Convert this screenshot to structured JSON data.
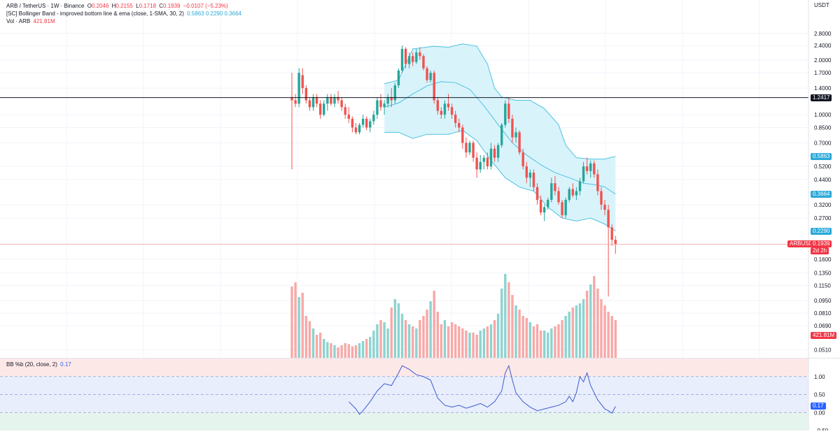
{
  "legend": {
    "line1": {
      "pair": "ARB / TetherUS · 1W · Binance",
      "o_label": "O",
      "o": "0.2046",
      "h_label": "H",
      "h": "0.2155",
      "l_label": "L",
      "l": "0.1718",
      "c_label": "C",
      "c": "0.1939",
      "chg": "−0.0107 (−5.23%)"
    },
    "line2": {
      "name": "[SC] Bollinger Band - improved bottom line & ema (close, 1-SMA, 30, 2)",
      "values": "0.5863  0.2290  0.3664"
    },
    "line3": {
      "name": "Vol · ARB",
      "value": "421.81M"
    },
    "osc": {
      "name": "BB %b (20, close, 2)",
      "value": "0.17"
    }
  },
  "axis": {
    "currency": "USDT",
    "ticks": [
      "2.8000",
      "2.4000",
      "2.0000",
      "1.7000",
      "1.4000",
      "1.0000",
      "0.8500",
      "0.7000",
      "0.5200",
      "0.4400",
      "0.3200",
      "0.2700",
      "0.1600",
      "0.1350",
      "0.1150",
      "0.0950",
      "0.0810",
      "0.0690",
      "0.0510"
    ],
    "osc_ticks": [
      "1.00",
      "0.50",
      "0.00",
      "−0.50"
    ]
  },
  "tags": {
    "hline": "1.2417",
    "bb_upper": "0.5863",
    "bb_basis": "0.3664",
    "bb_lower": "0.2290",
    "symbol": "ARBUSDT",
    "price": "0.1939",
    "countdown": "2d 2h",
    "volume": "421.81M",
    "osc": "0.17"
  },
  "colors": {
    "up": "#26a69a",
    "down": "#ef5350",
    "vol_up": "#8dd3cf",
    "vol_down": "#f7a9a7",
    "band_line": "#4dc3e0",
    "band_fill": "#d9f3fb",
    "osc_line": "#3c5ccf",
    "hline": "#131722"
  },
  "chart_data": {
    "type": "candlestick",
    "scale": "log",
    "ylim": [
      0.046,
      3.0
    ],
    "horizontal_line": 1.2417,
    "current_price": 0.1939,
    "candles": [
      [
        1.25,
        1.7,
        0.5,
        1.2
      ],
      [
        1.2,
        1.3,
        1.1,
        1.15
      ],
      [
        1.15,
        1.8,
        1.1,
        1.7
      ],
      [
        1.65,
        1.8,
        1.3,
        1.4
      ],
      [
        1.4,
        1.45,
        1.15,
        1.2
      ],
      [
        1.2,
        1.25,
        1.05,
        1.1
      ],
      [
        1.1,
        1.3,
        1.05,
        1.25
      ],
      [
        1.25,
        1.3,
        1.1,
        1.15
      ],
      [
        1.15,
        1.2,
        0.95,
        1.0
      ],
      [
        1.0,
        1.2,
        0.98,
        1.15
      ],
      [
        1.15,
        1.3,
        1.05,
        1.25
      ],
      [
        1.25,
        1.3,
        1.12,
        1.15
      ],
      [
        1.15,
        1.3,
        1.1,
        1.25
      ],
      [
        1.25,
        1.35,
        1.15,
        1.2
      ],
      [
        1.2,
        1.25,
        1.05,
        1.1
      ],
      [
        1.1,
        1.15,
        0.95,
        1.0
      ],
      [
        1.0,
        1.1,
        0.9,
        0.95
      ],
      [
        0.95,
        0.98,
        0.8,
        0.85
      ],
      [
        0.85,
        0.9,
        0.78,
        0.8
      ],
      [
        0.8,
        0.9,
        0.78,
        0.88
      ],
      [
        0.88,
        1.0,
        0.85,
        0.95
      ],
      [
        0.95,
        0.98,
        0.82,
        0.85
      ],
      [
        0.85,
        0.95,
        0.8,
        0.92
      ],
      [
        0.92,
        1.05,
        0.88,
        1.0
      ],
      [
        1.0,
        1.25,
        0.95,
        1.2
      ],
      [
        1.2,
        1.3,
        1.05,
        1.1
      ],
      [
        1.1,
        1.2,
        1.0,
        1.15
      ],
      [
        1.15,
        1.3,
        1.1,
        1.25
      ],
      [
        1.25,
        1.4,
        1.1,
        1.2
      ],
      [
        1.2,
        1.5,
        1.15,
        1.45
      ],
      [
        1.45,
        1.8,
        1.4,
        1.75
      ],
      [
        1.75,
        2.4,
        1.7,
        2.3
      ],
      [
        2.3,
        2.35,
        1.8,
        1.9
      ],
      [
        1.9,
        2.2,
        1.8,
        2.1
      ],
      [
        2.1,
        2.2,
        1.85,
        1.95
      ],
      [
        1.95,
        2.3,
        1.9,
        2.2
      ],
      [
        2.2,
        2.35,
        2.0,
        2.1
      ],
      [
        2.1,
        2.15,
        1.75,
        1.8
      ],
      [
        1.8,
        1.85,
        1.5,
        1.55
      ],
      [
        1.55,
        1.75,
        1.5,
        1.7
      ],
      [
        1.7,
        1.75,
        1.15,
        1.2
      ],
      [
        1.2,
        1.25,
        1.0,
        1.05
      ],
      [
        1.05,
        1.1,
        0.95,
        1.0
      ],
      [
        1.0,
        1.2,
        0.95,
        1.15
      ],
      [
        1.15,
        1.3,
        1.05,
        1.1
      ],
      [
        1.1,
        1.15,
        0.95,
        1.0
      ],
      [
        1.0,
        1.05,
        0.85,
        0.9
      ],
      [
        0.9,
        0.95,
        0.8,
        0.85
      ],
      [
        0.85,
        0.88,
        0.65,
        0.7
      ],
      [
        0.7,
        0.75,
        0.58,
        0.62
      ],
      [
        0.62,
        0.72,
        0.6,
        0.7
      ],
      [
        0.7,
        0.72,
        0.55,
        0.58
      ],
      [
        0.58,
        0.62,
        0.45,
        0.5
      ],
      [
        0.5,
        0.6,
        0.48,
        0.55
      ],
      [
        0.55,
        0.6,
        0.5,
        0.58
      ],
      [
        0.58,
        0.62,
        0.5,
        0.52
      ],
      [
        0.52,
        0.7,
        0.5,
        0.65
      ],
      [
        0.65,
        0.68,
        0.55,
        0.58
      ],
      [
        0.58,
        0.7,
        0.55,
        0.68
      ],
      [
        0.68,
        0.9,
        0.66,
        0.88
      ],
      [
        0.88,
        1.2,
        0.85,
        1.15
      ],
      [
        1.15,
        1.25,
        0.9,
        0.95
      ],
      [
        0.95,
        1.0,
        0.7,
        0.75
      ],
      [
        0.75,
        0.85,
        0.7,
        0.8
      ],
      [
        0.8,
        0.82,
        0.6,
        0.62
      ],
      [
        0.62,
        0.65,
        0.5,
        0.52
      ],
      [
        0.52,
        0.55,
        0.42,
        0.45
      ],
      [
        0.45,
        0.5,
        0.4,
        0.48
      ],
      [
        0.48,
        0.5,
        0.38,
        0.4
      ],
      [
        0.4,
        0.42,
        0.32,
        0.34
      ],
      [
        0.34,
        0.36,
        0.28,
        0.29
      ],
      [
        0.29,
        0.32,
        0.26,
        0.31
      ],
      [
        0.31,
        0.35,
        0.3,
        0.34
      ],
      [
        0.34,
        0.45,
        0.33,
        0.42
      ],
      [
        0.42,
        0.46,
        0.36,
        0.38
      ],
      [
        0.38,
        0.4,
        0.32,
        0.33
      ],
      [
        0.33,
        0.34,
        0.27,
        0.28
      ],
      [
        0.28,
        0.35,
        0.27,
        0.34
      ],
      [
        0.34,
        0.4,
        0.33,
        0.39
      ],
      [
        0.39,
        0.42,
        0.35,
        0.36
      ],
      [
        0.36,
        0.4,
        0.34,
        0.38
      ],
      [
        0.38,
        0.45,
        0.36,
        0.43
      ],
      [
        0.43,
        0.55,
        0.42,
        0.52
      ],
      [
        0.52,
        0.58,
        0.47,
        0.49
      ],
      [
        0.49,
        0.56,
        0.45,
        0.54
      ],
      [
        0.54,
        0.56,
        0.45,
        0.47
      ],
      [
        0.47,
        0.5,
        0.36,
        0.38
      ],
      [
        0.38,
        0.4,
        0.3,
        0.32
      ],
      [
        0.32,
        0.34,
        0.28,
        0.3
      ],
      [
        0.3,
        0.32,
        0.1,
        0.24
      ],
      [
        0.24,
        0.25,
        0.19,
        0.205
      ],
      [
        0.205,
        0.2155,
        0.1718,
        0.1939
      ]
    ],
    "volume": [
      68,
      72,
      58,
      62,
      40,
      35,
      28,
      22,
      24,
      18,
      15,
      14,
      12,
      10,
      12,
      14,
      13,
      11,
      12,
      14,
      16,
      18,
      20,
      26,
      32,
      36,
      34,
      28,
      48,
      56,
      52,
      42,
      36,
      32,
      30,
      28,
      36,
      40,
      46,
      54,
      64,
      44,
      32,
      36,
      30,
      34,
      32,
      30,
      28,
      26,
      24,
      24,
      22,
      26,
      28,
      30,
      32,
      36,
      42,
      66,
      80,
      72,
      60,
      50,
      46,
      40,
      38,
      34,
      30,
      32,
      26,
      26,
      24,
      28,
      30,
      32,
      36,
      40,
      44,
      48,
      50,
      52,
      56,
      64,
      70,
      78,
      66,
      56,
      50,
      44,
      40,
      36
    ],
    "vol_scale_max": 88,
    "bb_upper": [
      [
        26,
        1.48
      ],
      [
        30,
        1.55
      ],
      [
        34,
        2.3
      ],
      [
        40,
        2.38
      ],
      [
        44,
        2.35
      ],
      [
        48,
        2.45
      ],
      [
        52,
        2.38
      ],
      [
        55,
        1.9
      ],
      [
        57,
        1.4
      ],
      [
        59,
        1.25
      ],
      [
        63,
        1.2
      ],
      [
        67,
        1.2
      ],
      [
        71,
        1.08
      ],
      [
        75,
        0.88
      ],
      [
        77,
        0.68
      ],
      [
        80,
        0.58
      ],
      [
        84,
        0.57
      ],
      [
        88,
        0.57
      ],
      [
        91,
        0.59
      ]
    ],
    "bb_basis": [
      [
        26,
        1.1
      ],
      [
        30,
        1.16
      ],
      [
        34,
        1.3
      ],
      [
        38,
        1.44
      ],
      [
        42,
        1.52
      ],
      [
        46,
        1.5
      ],
      [
        50,
        1.38
      ],
      [
        54,
        1.12
      ],
      [
        58,
        0.88
      ],
      [
        62,
        0.7
      ],
      [
        66,
        0.6
      ],
      [
        70,
        0.53
      ],
      [
        74,
        0.48
      ],
      [
        78,
        0.45
      ],
      [
        82,
        0.42
      ],
      [
        86,
        0.41
      ],
      [
        88,
        0.4
      ],
      [
        91,
        0.366
      ]
    ],
    "bb_lower": [
      [
        26,
        0.8
      ],
      [
        30,
        0.8
      ],
      [
        34,
        0.74
      ],
      [
        38,
        0.78
      ],
      [
        44,
        0.78
      ],
      [
        48,
        0.82
      ],
      [
        52,
        0.72
      ],
      [
        56,
        0.56
      ],
      [
        60,
        0.45
      ],
      [
        64,
        0.4
      ],
      [
        68,
        0.38
      ],
      [
        72,
        0.31
      ],
      [
        76,
        0.27
      ],
      [
        80,
        0.26
      ],
      [
        84,
        0.27
      ],
      [
        88,
        0.25
      ],
      [
        90,
        0.236
      ],
      [
        91,
        0.229
      ]
    ],
    "bb_pct_b": [
      [
        16,
        0.3
      ],
      [
        18,
        0.1
      ],
      [
        19,
        -0.05
      ],
      [
        20,
        0.05
      ],
      [
        22,
        0.3
      ],
      [
        24,
        0.6
      ],
      [
        26,
        0.8
      ],
      [
        28,
        0.75
      ],
      [
        30,
        1.1
      ],
      [
        31,
        1.3
      ],
      [
        33,
        1.2
      ],
      [
        35,
        1.05
      ],
      [
        37,
        1.0
      ],
      [
        39,
        0.9
      ],
      [
        41,
        0.4
      ],
      [
        43,
        0.2
      ],
      [
        45,
        0.15
      ],
      [
        47,
        0.2
      ],
      [
        49,
        0.12
      ],
      [
        51,
        0.18
      ],
      [
        53,
        0.25
      ],
      [
        55,
        0.15
      ],
      [
        57,
        0.3
      ],
      [
        59,
        0.6
      ],
      [
        60,
        1.1
      ],
      [
        61,
        1.3
      ],
      [
        62,
        0.9
      ],
      [
        63,
        0.55
      ],
      [
        65,
        0.3
      ],
      [
        67,
        0.15
      ],
      [
        69,
        0.05
      ],
      [
        71,
        0.1
      ],
      [
        73,
        0.15
      ],
      [
        75,
        0.2
      ],
      [
        77,
        0.3
      ],
      [
        78,
        0.45
      ],
      [
        79,
        0.3
      ],
      [
        80,
        0.55
      ],
      [
        81,
        1.0
      ],
      [
        82,
        0.85
      ],
      [
        83,
        1.1
      ],
      [
        84,
        0.75
      ],
      [
        86,
        0.35
      ],
      [
        88,
        0.1
      ],
      [
        89,
        0.05
      ],
      [
        90,
        -0.02
      ],
      [
        91,
        0.17
      ]
    ],
    "osc_ylim": [
      -0.5,
      1.5
    ],
    "osc_levels": [
      1.0,
      0.5,
      0.0
    ]
  }
}
